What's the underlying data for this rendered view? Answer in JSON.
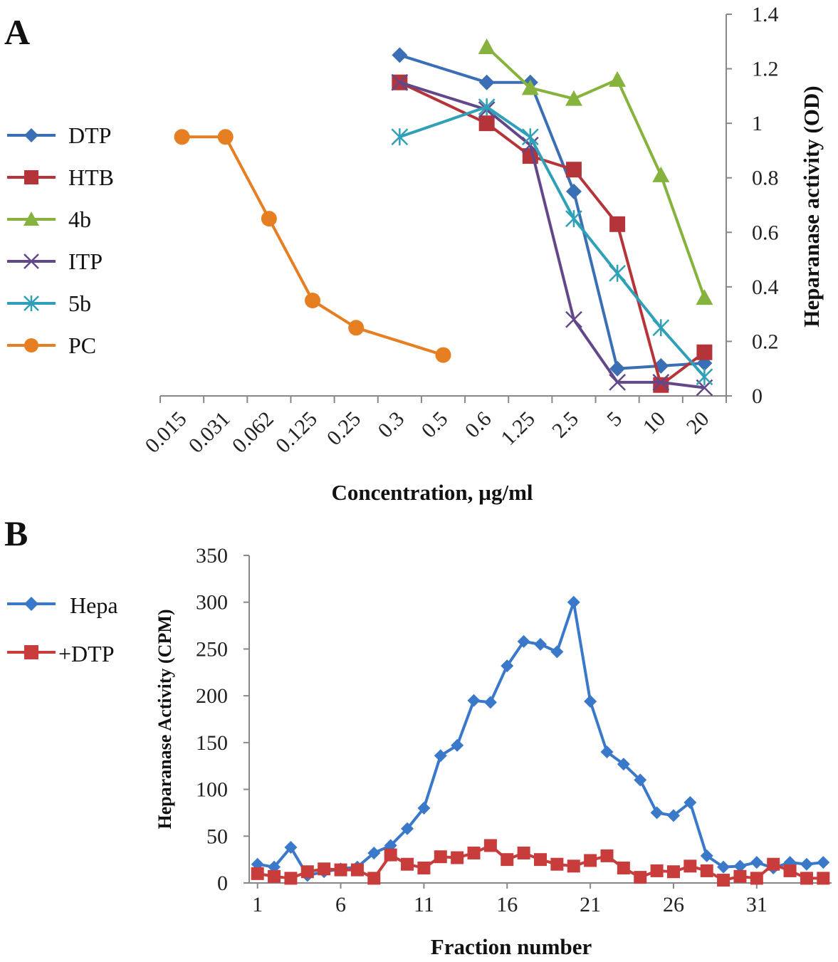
{
  "chart_data": [
    {
      "panel": "A",
      "type": "line",
      "xlabel": "Concentration, µg/ml",
      "ylabel": "Heparanase activity (OD)",
      "categories": [
        "0.015",
        "0.031",
        "0.062",
        "0.125",
        "0.25",
        "0.3",
        "0.5",
        "0.6",
        "1.25",
        "2.5",
        "5",
        "10",
        "20"
      ],
      "ylim": [
        0,
        1.4
      ],
      "yticks": [
        "0",
        "0.2",
        "0.4",
        "0.6",
        "0.8",
        "1",
        "1.2",
        "1.4"
      ],
      "y_axis_side": "right",
      "legend_position": "left",
      "series": [
        {
          "name": "DTP",
          "color": "#3a6fb5",
          "marker": "diamond",
          "x": [
            "0.3",
            "0.6",
            "1.25",
            "2.5",
            "5",
            "10",
            "20"
          ],
          "y": [
            1.25,
            1.15,
            1.15,
            0.75,
            0.1,
            0.11,
            0.12
          ]
        },
        {
          "name": "HTB",
          "color": "#b5343a",
          "marker": "square",
          "x": [
            "0.3",
            "0.6",
            "1.25",
            "2.5",
            "5",
            "10",
            "20"
          ],
          "y": [
            1.15,
            1.0,
            0.88,
            0.83,
            0.63,
            0.04,
            0.16
          ]
        },
        {
          "name": "4b",
          "color": "#86b33d",
          "marker": "triangle",
          "x": [
            "0.6",
            "1.25",
            "2.5",
            "5",
            "10",
            "20"
          ],
          "y": [
            1.28,
            1.13,
            1.09,
            1.16,
            0.81,
            0.36
          ]
        },
        {
          "name": "ITP",
          "color": "#634889",
          "marker": "x",
          "x": [
            "0.3",
            "0.6",
            "1.25",
            "2.5",
            "5",
            "10",
            "20"
          ],
          "y": [
            1.15,
            1.05,
            0.92,
            0.28,
            0.05,
            0.05,
            0.03
          ]
        },
        {
          "name": "5b",
          "color": "#2fa0b8",
          "marker": "star",
          "x": [
            "0.3",
            "0.6",
            "1.25",
            "2.5",
            "5",
            "10",
            "20"
          ],
          "y": [
            0.95,
            1.06,
            0.95,
            0.65,
            0.45,
            0.25,
            0.07
          ]
        },
        {
          "name": "PC",
          "color": "#e67e22",
          "marker": "circle",
          "x": [
            "0.015",
            "0.031",
            "0.062",
            "0.125",
            "0.25",
            "0.5"
          ],
          "y": [
            0.95,
            0.95,
            0.65,
            0.35,
            0.25,
            0.15
          ]
        }
      ]
    },
    {
      "panel": "B",
      "type": "line",
      "xlabel": "Fraction number",
      "ylabel": "Heparanase Activity (CPM)",
      "x": [
        1,
        2,
        3,
        4,
        5,
        6,
        7,
        8,
        9,
        10,
        11,
        12,
        13,
        14,
        15,
        16,
        17,
        18,
        19,
        20,
        21,
        22,
        23,
        24,
        25,
        26,
        27,
        28,
        29,
        30,
        31,
        32,
        33,
        34,
        35
      ],
      "xticks": [
        "1",
        "6",
        "11",
        "16",
        "21",
        "26",
        "31"
      ],
      "xlim": [
        0.5,
        35.5
      ],
      "ylim": [
        0,
        350
      ],
      "yticks": [
        "0",
        "50",
        "100",
        "150",
        "200",
        "250",
        "300",
        "350"
      ],
      "legend_position": "left",
      "series": [
        {
          "name": "Hepa",
          "color": "#3a78c9",
          "marker": "diamond",
          "values": [
            20,
            17,
            38,
            8,
            12,
            15,
            17,
            32,
            40,
            58,
            80,
            136,
            147,
            195,
            193,
            232,
            258,
            255,
            247,
            300,
            194,
            140,
            127,
            110,
            75,
            72,
            86,
            29,
            17,
            18,
            22,
            16,
            22,
            20,
            22
          ]
        },
        {
          "name": "+DTP",
          "color": "#c83c3c",
          "marker": "square",
          "values": [
            10,
            7,
            5,
            12,
            15,
            14,
            14,
            5,
            30,
            20,
            16,
            28,
            27,
            32,
            40,
            25,
            32,
            25,
            20,
            18,
            24,
            29,
            16,
            6,
            13,
            12,
            18,
            13,
            3,
            7,
            5,
            20,
            13,
            5,
            5
          ]
        }
      ]
    }
  ]
}
